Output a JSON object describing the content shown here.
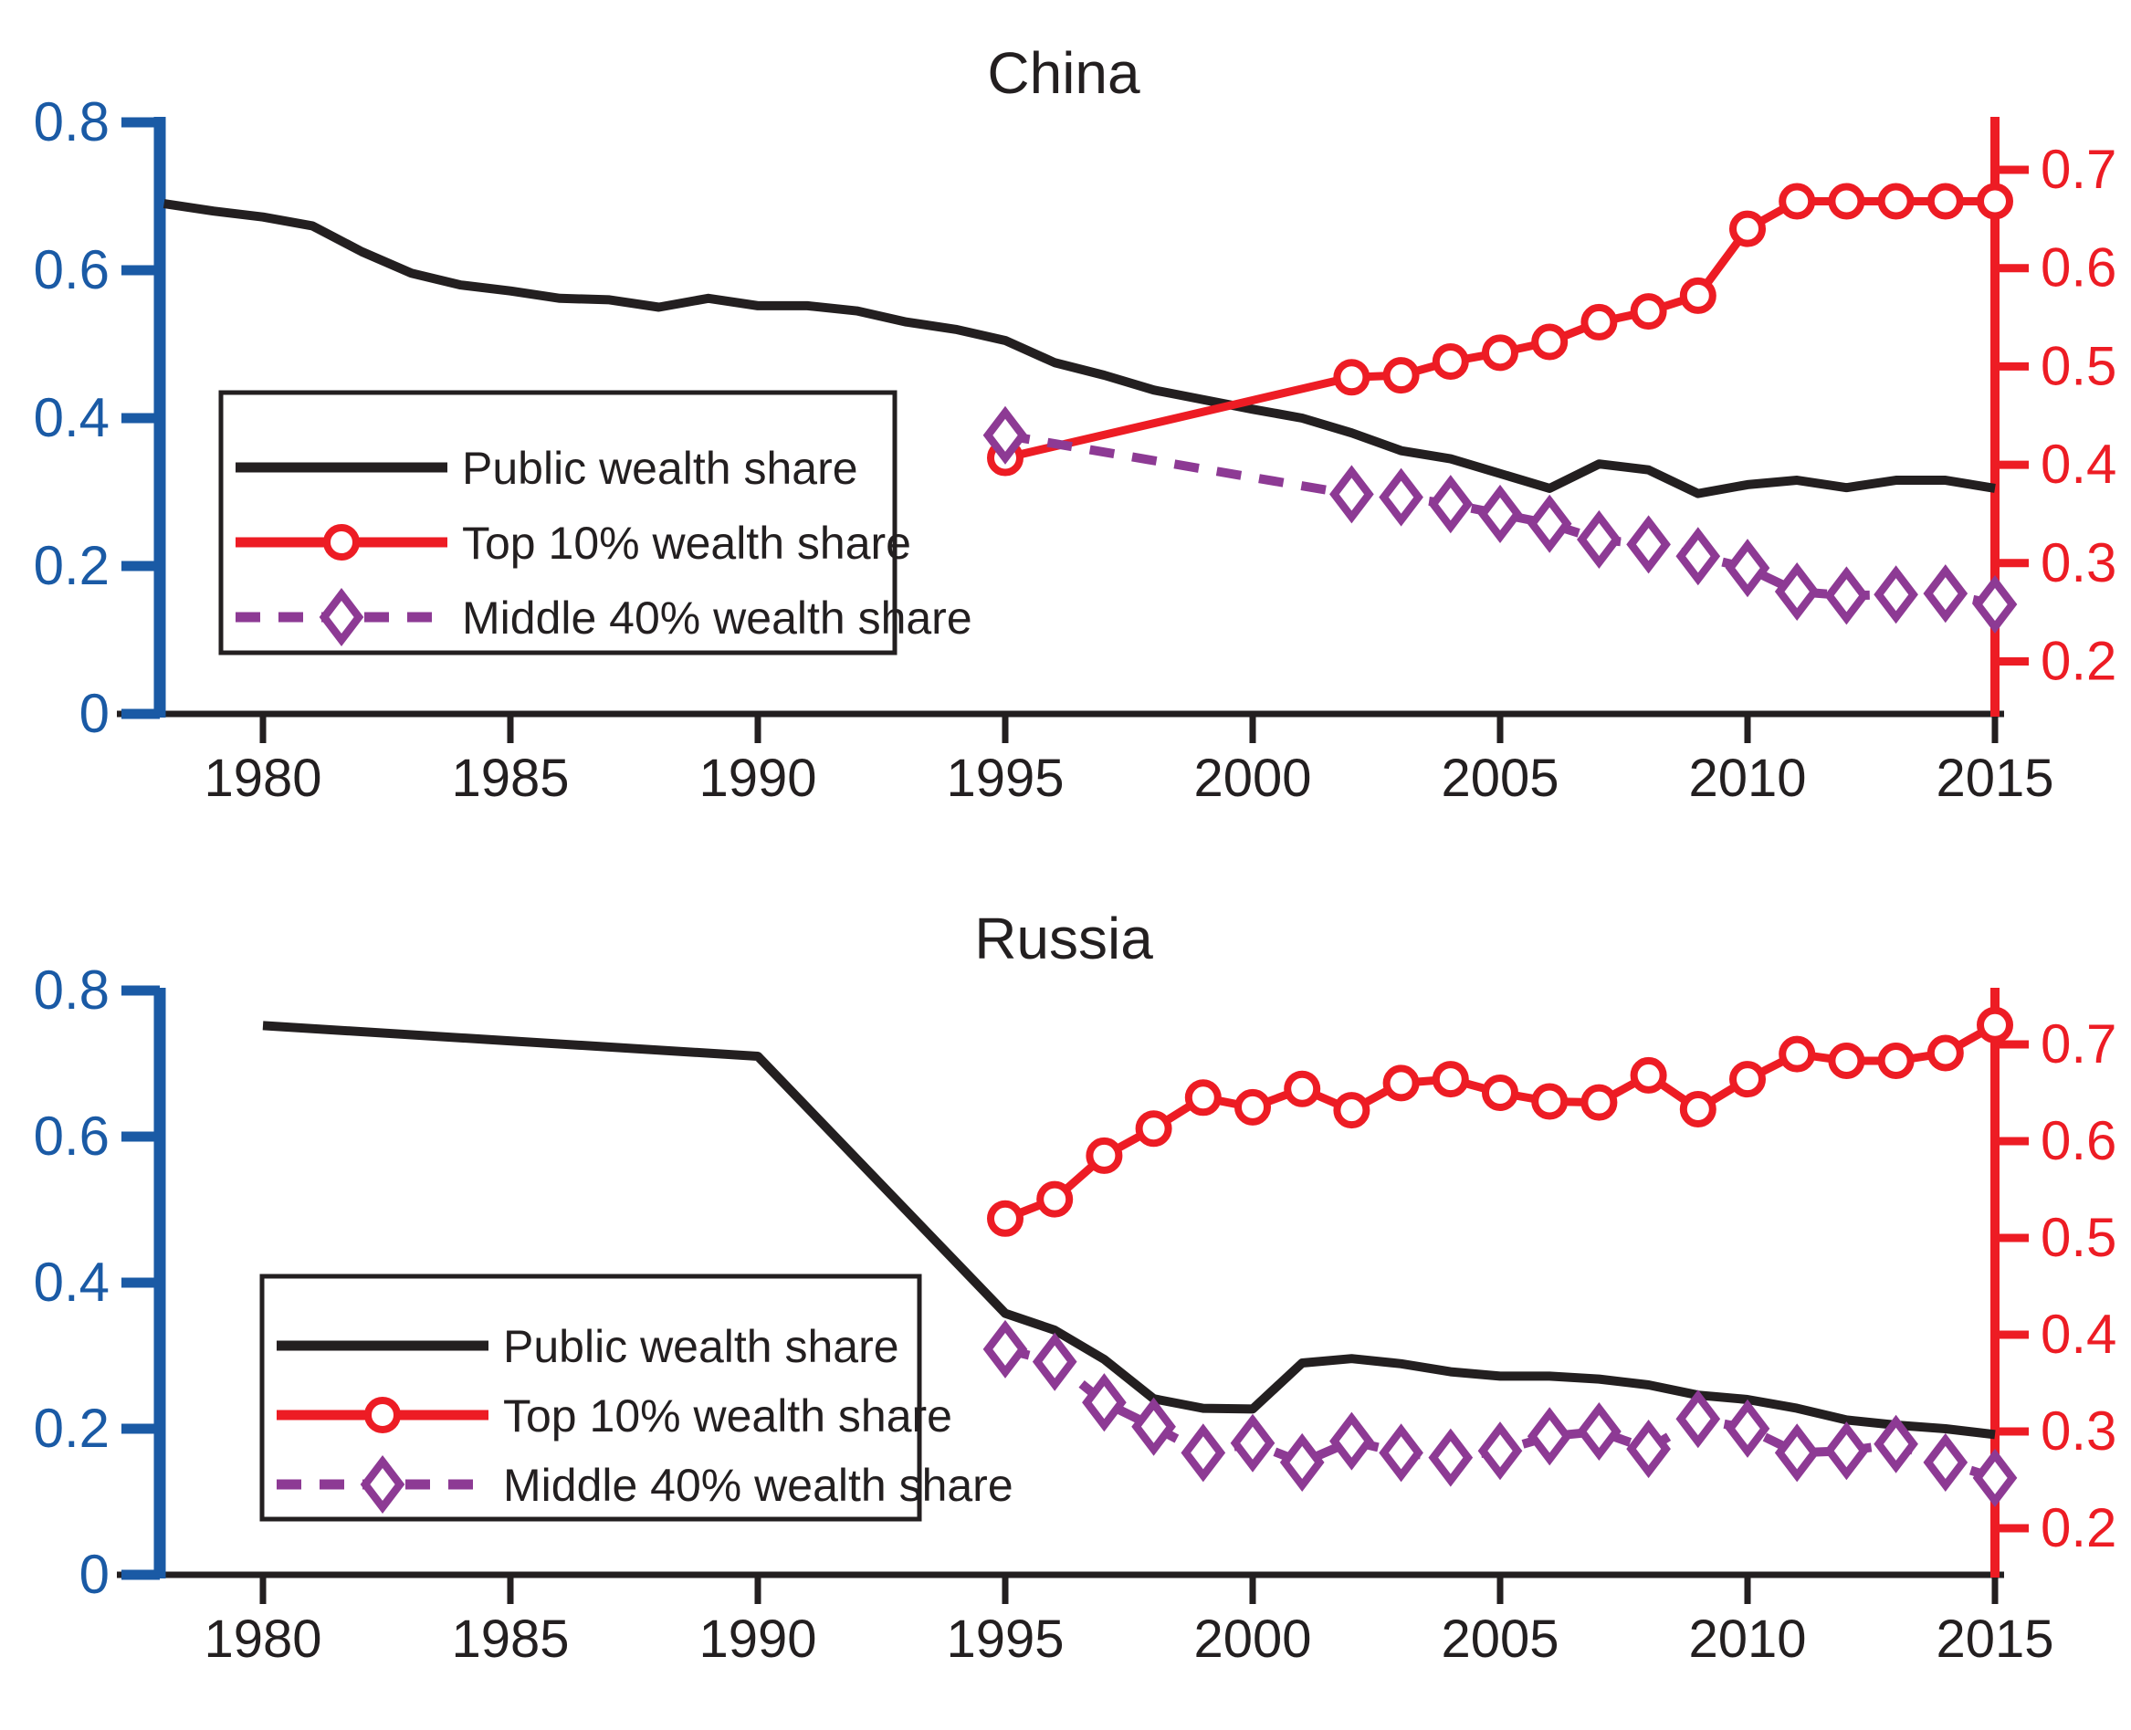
{
  "figure": {
    "kind": "two-panel wealth inequality line chart",
    "panel_titles": [
      "China",
      "Russia"
    ],
    "colors": {
      "left_axis_blue": "#1a5aa5",
      "right_axis_red": "#ed1c24",
      "public_black": "#231f20",
      "top10_red": "#ed1c24",
      "middle40_purple": "#8d3a94"
    }
  },
  "chart_data": [
    {
      "type": "line",
      "title": "China",
      "x_ticks": [
        1980,
        1985,
        1990,
        1995,
        2000,
        2005,
        2010,
        2015
      ],
      "x_range": [
        1978,
        2015.6
      ],
      "left_axis": {
        "ticks": [
          0.8,
          0.6,
          0.4,
          0.2,
          0
        ],
        "range": [
          0,
          0.82
        ],
        "color": "#1a5aa5"
      },
      "right_axis": {
        "ticks": [
          0.7,
          0.6,
          0.5,
          0.4,
          0.3,
          0.2
        ],
        "range": [
          0.15,
          0.75
        ],
        "color": "#ed1c24"
      },
      "legend_position": "inside-left",
      "series": [
        {
          "name": "Public wealth share",
          "axis": "left",
          "color": "#231f20",
          "style": "solid",
          "marker": "none",
          "points": [
            [
              1978,
              0.69
            ],
            [
              1979,
              0.68
            ],
            [
              1980,
              0.672
            ],
            [
              1981,
              0.66
            ],
            [
              1982,
              0.625
            ],
            [
              1983,
              0.596
            ],
            [
              1984,
              0.58
            ],
            [
              1985,
              0.572
            ],
            [
              1986,
              0.562
            ],
            [
              1987,
              0.56
            ],
            [
              1988,
              0.55
            ],
            [
              1989,
              0.562
            ],
            [
              1990,
              0.552
            ],
            [
              1991,
              0.552
            ],
            [
              1992,
              0.545
            ],
            [
              1993,
              0.53
            ],
            [
              1994,
              0.52
            ],
            [
              1995,
              0.505
            ],
            [
              1996,
              0.475
            ],
            [
              1997,
              0.458
            ],
            [
              1998,
              0.438
            ],
            [
              1999,
              0.425
            ],
            [
              2000,
              0.412
            ],
            [
              2001,
              0.4
            ],
            [
              2002,
              0.38
            ],
            [
              2003,
              0.356
            ],
            [
              2004,
              0.345
            ],
            [
              2005,
              0.325
            ],
            [
              2006,
              0.305
            ],
            [
              2007,
              0.338
            ],
            [
              2008,
              0.33
            ],
            [
              2009,
              0.298
            ],
            [
              2010,
              0.31
            ],
            [
              2011,
              0.316
            ],
            [
              2012,
              0.306
            ],
            [
              2013,
              0.316
            ],
            [
              2014,
              0.316
            ],
            [
              2015,
              0.305
            ]
          ]
        },
        {
          "name": "Top 10% wealth share",
          "axis": "right",
          "color": "#ed1c24",
          "style": "solid",
          "marker": "circle",
          "points": [
            [
              1995,
              0.407
            ],
            [
              2002,
              0.489
            ],
            [
              2003,
              0.491
            ],
            [
              2004,
              0.505
            ],
            [
              2005,
              0.514
            ],
            [
              2006,
              0.525
            ],
            [
              2007,
              0.545
            ],
            [
              2008,
              0.556
            ],
            [
              2009,
              0.572
            ],
            [
              2010,
              0.64
            ],
            [
              2011,
              0.668
            ],
            [
              2012,
              0.668
            ],
            [
              2013,
              0.668
            ],
            [
              2014,
              0.668
            ],
            [
              2015,
              0.668
            ]
          ]
        },
        {
          "name": "Middle 40% wealth share",
          "axis": "right",
          "color": "#8d3a94",
          "style": "dashed",
          "marker": "diamond",
          "points": [
            [
              1995,
              0.43
            ],
            [
              2002,
              0.37
            ],
            [
              2003,
              0.367
            ],
            [
              2004,
              0.36
            ],
            [
              2005,
              0.35
            ],
            [
              2006,
              0.34
            ],
            [
              2007,
              0.324
            ],
            [
              2008,
              0.319
            ],
            [
              2009,
              0.307
            ],
            [
              2010,
              0.295
            ],
            [
              2011,
              0.271
            ],
            [
              2012,
              0.267
            ],
            [
              2013,
              0.268
            ],
            [
              2014,
              0.269
            ],
            [
              2015,
              0.258
            ]
          ]
        }
      ]
    },
    {
      "type": "line",
      "title": "Russia",
      "x_ticks": [
        1980,
        1985,
        1990,
        1995,
        2000,
        2005,
        2010,
        2015
      ],
      "x_range": [
        1978,
        2015.6
      ],
      "left_axis": {
        "ticks": [
          0.8,
          0.6,
          0.4,
          0.2,
          0
        ],
        "range": [
          0,
          0.82
        ],
        "color": "#1a5aa5"
      },
      "right_axis": {
        "ticks": [
          0.7,
          0.6,
          0.5,
          0.4,
          0.3,
          0.2
        ],
        "range": [
          0.15,
          0.76
        ],
        "color": "#ed1c24"
      },
      "legend_position": "inside-left",
      "series": [
        {
          "name": "Public wealth share",
          "axis": "left",
          "color": "#231f20",
          "style": "solid",
          "marker": "none",
          "points": [
            [
              1980,
              0.752
            ],
            [
              1990,
              0.71
            ],
            [
              1995,
              0.358
            ],
            [
              1996,
              0.335
            ],
            [
              1997,
              0.295
            ],
            [
              1998,
              0.241
            ],
            [
              1999,
              0.228
            ],
            [
              2000,
              0.227
            ],
            [
              2001,
              0.29
            ],
            [
              2002,
              0.296
            ],
            [
              2003,
              0.289
            ],
            [
              2004,
              0.278
            ],
            [
              2005,
              0.272
            ],
            [
              2006,
              0.272
            ],
            [
              2007,
              0.268
            ],
            [
              2008,
              0.26
            ],
            [
              2009,
              0.246
            ],
            [
              2010,
              0.24
            ],
            [
              2011,
              0.228
            ],
            [
              2012,
              0.212
            ],
            [
              2013,
              0.205
            ],
            [
              2014,
              0.2
            ],
            [
              2015,
              0.192
            ]
          ]
        },
        {
          "name": "Top 10% wealth share",
          "axis": "right",
          "color": "#ed1c24",
          "style": "solid",
          "marker": "circle",
          "points": [
            [
              1995,
              0.52
            ],
            [
              1996,
              0.54
            ],
            [
              1997,
              0.585
            ],
            [
              1998,
              0.613
            ],
            [
              1999,
              0.645
            ],
            [
              2000,
              0.635
            ],
            [
              2001,
              0.654
            ],
            [
              2002,
              0.632
            ],
            [
              2003,
              0.66
            ],
            [
              2004,
              0.664
            ],
            [
              2005,
              0.65
            ],
            [
              2006,
              0.641
            ],
            [
              2007,
              0.64
            ],
            [
              2008,
              0.668
            ],
            [
              2009,
              0.633
            ],
            [
              2010,
              0.664
            ],
            [
              2011,
              0.69
            ],
            [
              2012,
              0.683
            ],
            [
              2013,
              0.683
            ],
            [
              2014,
              0.691
            ],
            [
              2015,
              0.72
            ]
          ]
        },
        {
          "name": "Middle 40% wealth share",
          "axis": "right",
          "color": "#8d3a94",
          "style": "dashed",
          "marker": "diamond",
          "points": [
            [
              1995,
              0.385
            ],
            [
              1996,
              0.372
            ],
            [
              1997,
              0.33
            ],
            [
              1998,
              0.305
            ],
            [
              1999,
              0.278
            ],
            [
              2000,
              0.288
            ],
            [
              2001,
              0.268
            ],
            [
              2002,
              0.29
            ],
            [
              2003,
              0.278
            ],
            [
              2004,
              0.273
            ],
            [
              2005,
              0.28
            ],
            [
              2006,
              0.295
            ],
            [
              2007,
              0.3
            ],
            [
              2008,
              0.282
            ],
            [
              2009,
              0.313
            ],
            [
              2010,
              0.303
            ],
            [
              2011,
              0.278
            ],
            [
              2012,
              0.28
            ],
            [
              2013,
              0.287
            ],
            [
              2014,
              0.268
            ],
            [
              2015,
              0.252
            ]
          ]
        }
      ]
    }
  ]
}
